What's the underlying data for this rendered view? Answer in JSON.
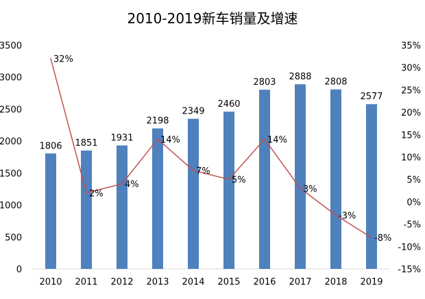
{
  "chart_data": {
    "type": "bar+line",
    "title": "2010-2019新车销量及增速",
    "categories": [
      "2010",
      "2011",
      "2012",
      "2013",
      "2014",
      "2015",
      "2016",
      "2017",
      "2018",
      "2019"
    ],
    "series": [
      {
        "type": "bar",
        "axis": "left",
        "values": [
          1806,
          1851,
          1931,
          2198,
          2349,
          2460,
          2803,
          2888,
          2808,
          2577
        ],
        "labels": [
          "1806",
          "1851",
          "1931",
          "2198",
          "2349",
          "2460",
          "2803",
          "2888",
          "2808",
          "2577"
        ],
        "color": "#4f81bd"
      },
      {
        "type": "line",
        "axis": "right",
        "values": [
          32,
          2,
          4,
          14,
          7,
          5,
          14,
          3,
          -3,
          -8
        ],
        "labels": [
          "32%",
          "2%",
          "4%",
          "14%",
          "7%",
          "5%",
          "14%",
          "3%",
          "-3%",
          "-8%"
        ],
        "color": "#c0504d"
      }
    ],
    "left_axis": {
      "ylim": [
        0,
        3500
      ],
      "ticks": [
        "0",
        "500",
        "1000",
        "1500",
        "2000",
        "2500",
        "3000",
        "3500"
      ]
    },
    "right_axis": {
      "ylim": [
        -15,
        35
      ],
      "ticks": [
        "-15%",
        "-10%",
        "-5%",
        "0%",
        "5%",
        "10%",
        "15%",
        "20%",
        "25%",
        "30%",
        "35%"
      ]
    },
    "grid": false,
    "legend": "none"
  }
}
